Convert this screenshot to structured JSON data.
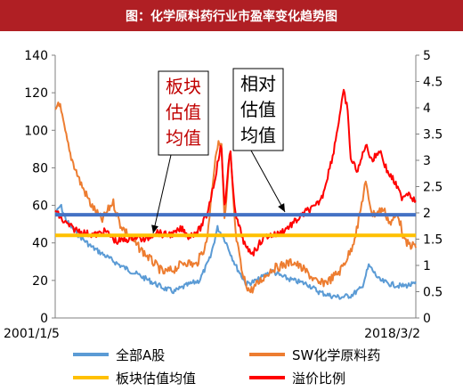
{
  "title": "图：化学原料药行业市盈率变化趋势图",
  "chart_data": {
    "type": "line",
    "x_start": "2001/1/5",
    "x_end": "2018/3/2",
    "y_left": {
      "min": 0,
      "max": 140,
      "ticks": [
        "0",
        "20",
        "40",
        "60",
        "80",
        "100",
        "120",
        "140"
      ]
    },
    "y_right": {
      "min": 0,
      "max": 5,
      "ticks": [
        "0",
        "0.5",
        "1",
        "1.5",
        "2",
        "2.5",
        "3",
        "3.5",
        "4",
        "4.5",
        "5"
      ]
    },
    "colors": {
      "all_a": "#5b9bd5",
      "sw": "#ed7d31",
      "avg": "#ffc000",
      "premium": "#ff0000",
      "blue_ref": "#4472c4"
    },
    "reference_lines": {
      "avg_pe": 44,
      "blue_ref_pe": 55
    },
    "series": [
      {
        "name": "全部A股",
        "axis": "left",
        "color": "#5b9bd5",
        "values": [
          [
            0,
            55
          ],
          [
            0.015,
            60
          ],
          [
            0.03,
            52
          ],
          [
            0.06,
            45
          ],
          [
            0.1,
            38
          ],
          [
            0.14,
            33
          ],
          [
            0.18,
            28
          ],
          [
            0.22,
            24
          ],
          [
            0.26,
            20
          ],
          [
            0.3,
            16
          ],
          [
            0.33,
            14
          ],
          [
            0.36,
            17
          ],
          [
            0.4,
            20
          ],
          [
            0.43,
            32
          ],
          [
            0.45,
            48
          ],
          [
            0.47,
            42
          ],
          [
            0.5,
            28
          ],
          [
            0.53,
            18
          ],
          [
            0.56,
            20
          ],
          [
            0.6,
            25
          ],
          [
            0.63,
            22
          ],
          [
            0.66,
            20
          ],
          [
            0.7,
            18
          ],
          [
            0.73,
            14
          ],
          [
            0.76,
            12
          ],
          [
            0.79,
            11
          ],
          [
            0.82,
            12
          ],
          [
            0.85,
            16
          ],
          [
            0.87,
            28
          ],
          [
            0.9,
            20
          ],
          [
            0.93,
            18
          ],
          [
            0.96,
            17
          ],
          [
            1,
            18
          ]
        ]
      },
      {
        "name": "SW化学原料药",
        "axis": "left",
        "color": "#ed7d31",
        "values": [
          [
            0,
            110
          ],
          [
            0.01,
            116
          ],
          [
            0.02,
            106
          ],
          [
            0.04,
            88
          ],
          [
            0.07,
            72
          ],
          [
            0.1,
            60
          ],
          [
            0.13,
            52
          ],
          [
            0.16,
            62
          ],
          [
            0.18,
            50
          ],
          [
            0.22,
            40
          ],
          [
            0.26,
            32
          ],
          [
            0.3,
            24
          ],
          [
            0.33,
            26
          ],
          [
            0.36,
            30
          ],
          [
            0.39,
            28
          ],
          [
            0.42,
            40
          ],
          [
            0.445,
            88
          ],
          [
            0.46,
            96
          ],
          [
            0.47,
            50
          ],
          [
            0.485,
            90
          ],
          [
            0.5,
            45
          ],
          [
            0.52,
            22
          ],
          [
            0.54,
            14
          ],
          [
            0.57,
            20
          ],
          [
            0.6,
            26
          ],
          [
            0.63,
            28
          ],
          [
            0.66,
            30
          ],
          [
            0.7,
            24
          ],
          [
            0.73,
            18
          ],
          [
            0.76,
            20
          ],
          [
            0.79,
            25
          ],
          [
            0.82,
            36
          ],
          [
            0.84,
            50
          ],
          [
            0.86,
            72
          ],
          [
            0.88,
            55
          ],
          [
            0.91,
            58
          ],
          [
            0.93,
            50
          ],
          [
            0.95,
            56
          ],
          [
            0.97,
            40
          ],
          [
            1,
            38
          ]
        ]
      },
      {
        "name": "溢价比例",
        "axis": "right",
        "color": "#ff0000",
        "values": [
          [
            0,
            2.05
          ],
          [
            0.02,
            1.85
          ],
          [
            0.05,
            1.7
          ],
          [
            0.08,
            1.62
          ],
          [
            0.11,
            1.58
          ],
          [
            0.14,
            1.65
          ],
          [
            0.17,
            1.45
          ],
          [
            0.2,
            1.5
          ],
          [
            0.22,
            1.55
          ],
          [
            0.25,
            1.48
          ],
          [
            0.28,
            1.65
          ],
          [
            0.3,
            1.58
          ],
          [
            0.33,
            1.6
          ],
          [
            0.35,
            1.7
          ],
          [
            0.37,
            1.55
          ],
          [
            0.4,
            1.68
          ],
          [
            0.42,
            1.95
          ],
          [
            0.44,
            2.55
          ],
          [
            0.46,
            3.3
          ],
          [
            0.47,
            2.1
          ],
          [
            0.485,
            3.2
          ],
          [
            0.5,
            1.95
          ],
          [
            0.53,
            1.3
          ],
          [
            0.55,
            1.25
          ],
          [
            0.58,
            1.55
          ],
          [
            0.62,
            1.6
          ],
          [
            0.66,
            1.8
          ],
          [
            0.7,
            2.05
          ],
          [
            0.72,
            2.1
          ],
          [
            0.74,
            2.3
          ],
          [
            0.77,
            3.1
          ],
          [
            0.79,
            3.9
          ],
          [
            0.8,
            4.3
          ],
          [
            0.81,
            4.0
          ],
          [
            0.82,
            3.0
          ],
          [
            0.84,
            2.8
          ],
          [
            0.86,
            3.3
          ],
          [
            0.88,
            3.0
          ],
          [
            0.9,
            3.2
          ],
          [
            0.92,
            2.8
          ],
          [
            0.94,
            2.6
          ],
          [
            0.96,
            2.3
          ],
          [
            0.98,
            2.4
          ],
          [
            1,
            2.2
          ]
        ]
      }
    ],
    "legend": [
      {
        "label": "全部A股",
        "color": "#5b9bd5"
      },
      {
        "label": "SW化学原料药",
        "color": "#ed7d31"
      },
      {
        "label": "板块估值均值",
        "color": "#ffc000"
      },
      {
        "label": "溢价比例",
        "color": "#ff0000"
      }
    ],
    "annotations": [
      {
        "lines": [
          "板块",
          "估值",
          "均值"
        ],
        "color": "#c00000"
      },
      {
        "lines": [
          "相对",
          "估值",
          "均值"
        ],
        "color": "#000000"
      }
    ]
  }
}
